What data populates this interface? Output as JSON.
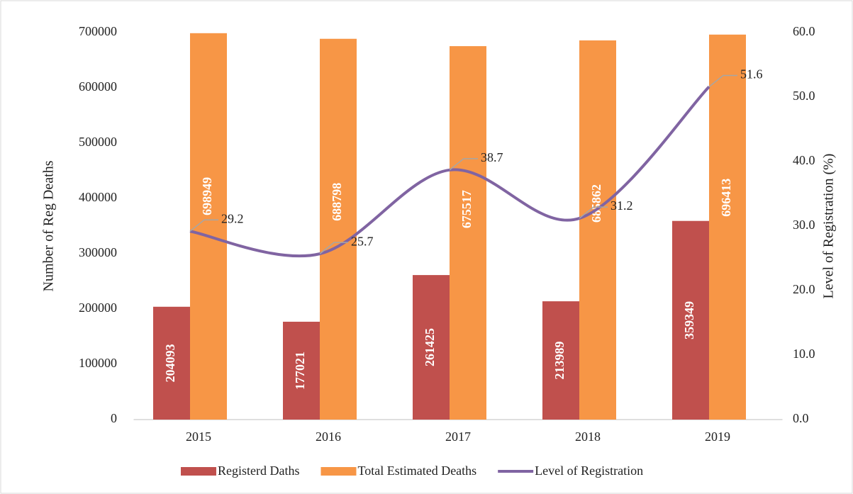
{
  "chart_data": {
    "type": "bar-line",
    "categories": [
      "2015",
      "2016",
      "2017",
      "2018",
      "2019"
    ],
    "y_label": "Number of Reg Deaths",
    "y2_label": "Level of Registration (%)",
    "ylim": [
      0,
      700000
    ],
    "yticks": [
      0,
      100000,
      200000,
      300000,
      400000,
      500000,
      600000,
      700000
    ],
    "y2lim": [
      0,
      60
    ],
    "y2ticks": [
      {
        "value": 0,
        "label": "0.0"
      },
      {
        "value": 10,
        "label": "10.0"
      },
      {
        "value": 20,
        "label": "20.0"
      },
      {
        "value": 30,
        "label": "30.0"
      },
      {
        "value": 40,
        "label": "40.0"
      },
      {
        "value": 50,
        "label": "50.0"
      },
      {
        "value": 60,
        "label": "60.0"
      }
    ],
    "legend": "bottom",
    "series": [
      {
        "name": "Registerd Daths",
        "type": "bar",
        "color": "#c0504d",
        "values": [
          204093,
          177021,
          261425,
          213989,
          359349
        ]
      },
      {
        "name": "Total Estimated Deaths",
        "type": "bar",
        "color": "#f79646",
        "values": [
          698949,
          688798,
          675517,
          685862,
          696413
        ]
      },
      {
        "name": "Level of Registration",
        "type": "line",
        "axis": "y2",
        "color": "#8064a2",
        "values": [
          29.2,
          25.7,
          38.7,
          31.2,
          51.6
        ]
      }
    ]
  }
}
